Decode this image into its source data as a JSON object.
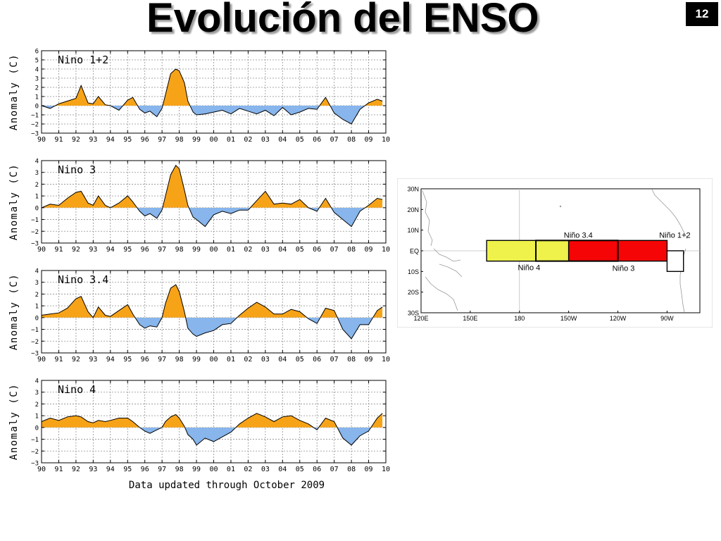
{
  "slide": {
    "title": "Evolución del ENSO",
    "page_number": "12"
  },
  "colors": {
    "positive_fill": "#f7a318",
    "negative_fill": "#87b5ec",
    "line": "#000000",
    "grid": "#8f8f8f"
  },
  "chart_data": [
    {
      "type": "area",
      "panel_label": "Nino 1+2",
      "ylabel": "Anomaly (C)",
      "ylim": [
        -3,
        6
      ],
      "yticks": [
        -3,
        -2,
        -1,
        0,
        1,
        2,
        3,
        4,
        5,
        6
      ],
      "xlim": [
        1990,
        2010
      ],
      "xticklabels": [
        "90",
        "91",
        "92",
        "93",
        "94",
        "95",
        "96",
        "97",
        "98",
        "99",
        "00",
        "01",
        "02",
        "03",
        "04",
        "05",
        "06",
        "07",
        "08",
        "09",
        "10"
      ],
      "grid": true,
      "series": [
        {
          "x": [
            1990,
            1990.5,
            1991,
            1991.5,
            1992,
            1992.3,
            1992.7,
            1993,
            1993.3,
            1993.7,
            1994,
            1994.5,
            1995,
            1995.3,
            1995.7,
            1996,
            1996.3,
            1996.7,
            1997,
            1997.2,
            1997.5,
            1997.8,
            1998,
            1998.3,
            1998.5,
            1998.8,
            1999,
            1999.5,
            2000,
            2000.5,
            2001,
            2001.5,
            2002,
            2002.5,
            2003,
            2003.5,
            2004,
            2004.5,
            2005,
            2005.5,
            2006,
            2006.5,
            2007,
            2007.5,
            2008,
            2008.5,
            2009,
            2009.5,
            2009.8
          ],
          "y": [
            0,
            -0.3,
            0.2,
            0.5,
            0.8,
            2.2,
            0.3,
            0.2,
            1.0,
            0.1,
            0.0,
            -0.5,
            0.6,
            0.9,
            -0.4,
            -0.8,
            -0.6,
            -1.2,
            -0.3,
            1.2,
            3.5,
            4.0,
            3.8,
            2.5,
            0.5,
            -0.7,
            -1.0,
            -0.9,
            -0.7,
            -0.5,
            -0.9,
            -0.3,
            -0.6,
            -0.9,
            -0.5,
            -1.1,
            -0.2,
            -1.0,
            -0.7,
            -0.3,
            -0.4,
            0.9,
            -0.8,
            -1.5,
            -2.0,
            -0.4,
            0.3,
            0.7,
            0.5
          ]
        }
      ]
    },
    {
      "type": "area",
      "panel_label": "Nino 3",
      "ylabel": "Anomaly (C)",
      "ylim": [
        -3,
        4
      ],
      "yticks": [
        -3,
        -2,
        -1,
        0,
        1,
        2,
        3,
        4
      ],
      "xlim": [
        1990,
        2010
      ],
      "xticklabels": [
        "90",
        "91",
        "92",
        "93",
        "94",
        "95",
        "96",
        "97",
        "98",
        "99",
        "00",
        "01",
        "02",
        "03",
        "04",
        "05",
        "06",
        "07",
        "08",
        "09",
        "10"
      ],
      "grid": true,
      "series": [
        {
          "x": [
            1990,
            1990.5,
            1991,
            1991.5,
            1992,
            1992.3,
            1992.7,
            1993,
            1993.3,
            1993.7,
            1994,
            1994.5,
            1995,
            1995.3,
            1995.7,
            1996,
            1996.3,
            1996.7,
            1997,
            1997.2,
            1997.5,
            1997.8,
            1998,
            1998.3,
            1998.5,
            1998.8,
            1999,
            1999.5,
            2000,
            2000.5,
            2001,
            2001.5,
            2002,
            2002.5,
            2003,
            2003.5,
            2004,
            2004.5,
            2005,
            2005.5,
            2006,
            2006.5,
            2007,
            2007.5,
            2008,
            2008.5,
            2009,
            2009.5,
            2009.8
          ],
          "y": [
            0,
            0.3,
            0.2,
            0.8,
            1.3,
            1.4,
            0.4,
            0.2,
            1.0,
            0.2,
            0.0,
            0.4,
            1.0,
            0.5,
            -0.3,
            -0.7,
            -0.5,
            -0.9,
            -0.2,
            1.0,
            2.8,
            3.6,
            3.3,
            1.5,
            0.2,
            -0.8,
            -1.0,
            -1.6,
            -0.6,
            -0.3,
            -0.5,
            -0.2,
            -0.2,
            0.6,
            1.4,
            0.3,
            0.4,
            0.3,
            0.7,
            0.0,
            -0.3,
            0.8,
            -0.4,
            -1.0,
            -1.6,
            -0.3,
            0.2,
            0.8,
            0.7
          ]
        }
      ]
    },
    {
      "type": "area",
      "panel_label": "Nino 3.4",
      "ylabel": "Anomaly (C)",
      "ylim": [
        -3,
        4
      ],
      "yticks": [
        -3,
        -2,
        -1,
        0,
        1,
        2,
        3,
        4
      ],
      "xlim": [
        1990,
        2010
      ],
      "xticklabels": [
        "90",
        "91",
        "92",
        "93",
        "94",
        "95",
        "96",
        "97",
        "98",
        "99",
        "00",
        "01",
        "02",
        "03",
        "04",
        "05",
        "06",
        "07",
        "08",
        "09",
        "10"
      ],
      "grid": true,
      "series": [
        {
          "x": [
            1990,
            1990.5,
            1991,
            1991.5,
            1992,
            1992.3,
            1992.7,
            1993,
            1993.3,
            1993.7,
            1994,
            1994.5,
            1995,
            1995.3,
            1995.7,
            1996,
            1996.3,
            1996.7,
            1997,
            1997.2,
            1997.5,
            1997.8,
            1998,
            1998.3,
            1998.5,
            1998.8,
            1999,
            1999.5,
            2000,
            2000.5,
            2001,
            2001.5,
            2002,
            2002.5,
            2003,
            2003.5,
            2004,
            2004.5,
            2005,
            2005.5,
            2006,
            2006.5,
            2007,
            2007.5,
            2008,
            2008.5,
            2009,
            2009.5,
            2009.8
          ],
          "y": [
            0.2,
            0.3,
            0.4,
            0.8,
            1.6,
            1.8,
            0.5,
            0.0,
            0.9,
            0.2,
            0.1,
            0.6,
            1.1,
            0.3,
            -0.6,
            -0.9,
            -0.7,
            -0.8,
            0.0,
            1.2,
            2.5,
            2.8,
            2.2,
            0.5,
            -0.9,
            -1.4,
            -1.6,
            -1.3,
            -1.1,
            -0.6,
            -0.5,
            0.2,
            0.8,
            1.3,
            0.9,
            0.3,
            0.3,
            0.7,
            0.5,
            -0.1,
            -0.5,
            0.8,
            0.6,
            -1.0,
            -1.8,
            -0.6,
            -0.6,
            0.6,
            0.9
          ]
        }
      ]
    },
    {
      "type": "area",
      "panel_label": "Nino 4",
      "ylabel": "Anomaly (C)",
      "ylim": [
        -3,
        4
      ],
      "yticks": [
        -3,
        -2,
        -1,
        0,
        1,
        2,
        3,
        4
      ],
      "xlim": [
        1990,
        2010
      ],
      "xticklabels": [
        "90",
        "91",
        "92",
        "93",
        "94",
        "95",
        "96",
        "97",
        "98",
        "99",
        "00",
        "01",
        "02",
        "03",
        "04",
        "05",
        "06",
        "07",
        "08",
        "09",
        "10"
      ],
      "grid": true,
      "annotation": "Data updated through October 2009",
      "series": [
        {
          "x": [
            1990,
            1990.5,
            1991,
            1991.5,
            1992,
            1992.3,
            1992.7,
            1993,
            1993.3,
            1993.7,
            1994,
            1994.5,
            1995,
            1995.3,
            1995.7,
            1996,
            1996.3,
            1996.7,
            1997,
            1997.2,
            1997.5,
            1997.8,
            1998,
            1998.3,
            1998.5,
            1998.8,
            1999,
            1999.5,
            2000,
            2000.5,
            2001,
            2001.5,
            2002,
            2002.5,
            2003,
            2003.5,
            2004,
            2004.5,
            2005,
            2005.5,
            2006,
            2006.5,
            2007,
            2007.5,
            2008,
            2008.5,
            2009,
            2009.5,
            2009.8
          ],
          "y": [
            0.5,
            0.8,
            0.6,
            0.9,
            1.0,
            0.9,
            0.5,
            0.4,
            0.6,
            0.5,
            0.6,
            0.8,
            0.8,
            0.5,
            0.0,
            -0.3,
            -0.5,
            -0.2,
            0.0,
            0.5,
            0.9,
            1.1,
            0.8,
            0.1,
            -0.6,
            -1.0,
            -1.5,
            -0.9,
            -1.2,
            -0.8,
            -0.4,
            0.3,
            0.8,
            1.2,
            0.9,
            0.5,
            0.9,
            1.0,
            0.6,
            0.3,
            -0.2,
            0.8,
            0.5,
            -0.9,
            -1.5,
            -0.7,
            -0.3,
            0.8,
            1.2
          ]
        }
      ]
    }
  ],
  "map": {
    "lat_labels": [
      "30N",
      "20N",
      "10N",
      "EQ",
      "10S",
      "20S",
      "30S"
    ],
    "lon_labels": [
      "120E",
      "150E",
      "180",
      "150W",
      "120W",
      "90W"
    ],
    "regions": [
      {
        "name": "Niño 3.4",
        "label": "Niño 3.4",
        "lon": [
          190,
          240
        ],
        "lat": [
          -5,
          5
        ],
        "fill": "none"
      },
      {
        "name": "Niño 4",
        "label": "Niño 4",
        "lon": [
          160,
          210
        ],
        "lat": [
          -5,
          5
        ],
        "fill": "#eef24a"
      },
      {
        "name": "Niño 3",
        "label": "Niño 3",
        "lon": [
          210,
          270
        ],
        "lat": [
          -5,
          5
        ],
        "fill": "#f50505"
      },
      {
        "name": "Niño 1+2",
        "label": "Niño 1+2",
        "lon": [
          270,
          280
        ],
        "lat": [
          -10,
          0
        ],
        "fill": "#ffffff"
      }
    ]
  }
}
